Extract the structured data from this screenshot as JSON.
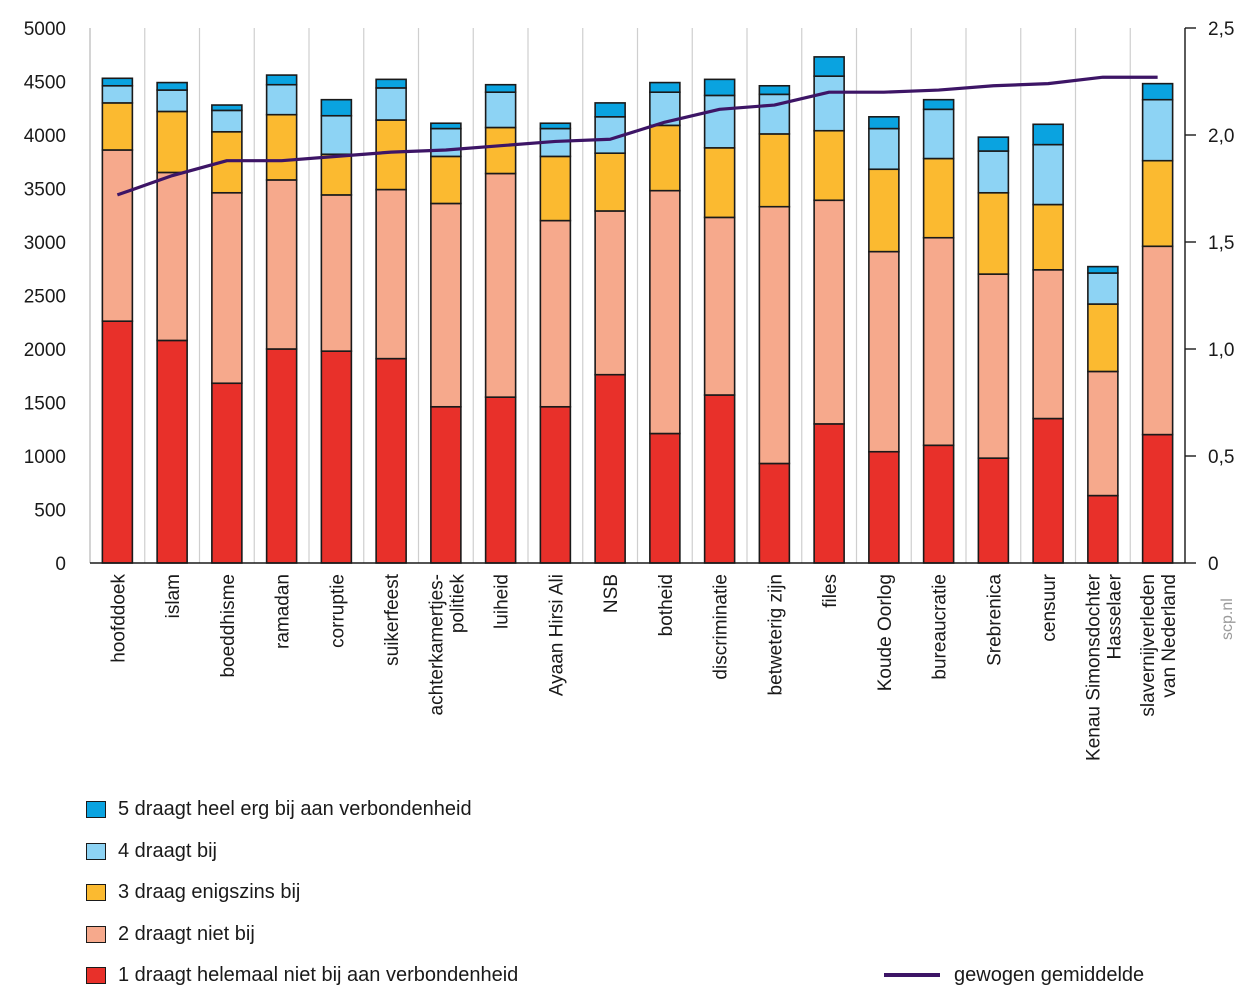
{
  "chart_data": {
    "type": "bar",
    "stacked": true,
    "categories": [
      [
        "hoofddoek"
      ],
      [
        "islam"
      ],
      [
        "boeddhisme"
      ],
      [
        "ramadan"
      ],
      [
        "corruptie"
      ],
      [
        "suikerfeest"
      ],
      [
        "achterkamertjes-",
        "politiek"
      ],
      [
        "luiheid"
      ],
      [
        "Ayaan Hirsi Ali"
      ],
      [
        "NSB"
      ],
      [
        "botheid"
      ],
      [
        "discriminatie"
      ],
      [
        "betweterig zijn"
      ],
      [
        "files"
      ],
      [
        "Koude Oorlog"
      ],
      [
        "bureaucratie"
      ],
      [
        "Srebrenica"
      ],
      [
        "censuur"
      ],
      [
        "Kenau Simonsdochter",
        "Hasselaer"
      ],
      [
        "slavernijverleden",
        "van Nederland"
      ]
    ],
    "series": [
      {
        "name": "1 draagt helemaal niet bij aan verbondenheid",
        "color": "#e8302a",
        "values": [
          2260,
          2080,
          1680,
          2000,
          1980,
          1910,
          1460,
          1550,
          1460,
          1760,
          1210,
          1570,
          930,
          1300,
          1040,
          1100,
          980,
          1350,
          630,
          1200
        ]
      },
      {
        "name": "2 draagt niet bij",
        "color": "#f6a98c",
        "values": [
          1600,
          1570,
          1780,
          1580,
          1460,
          1580,
          1900,
          2090,
          1740,
          1530,
          2270,
          1660,
          2400,
          2090,
          1870,
          1940,
          1720,
          1390,
          1160,
          1760
        ]
      },
      {
        "name": "3 draag enigszins bij",
        "color": "#fbba30",
        "values": [
          440,
          570,
          570,
          610,
          380,
          650,
          440,
          430,
          600,
          540,
          610,
          650,
          680,
          650,
          770,
          740,
          760,
          610,
          630,
          800
        ]
      },
      {
        "name": "4 draagt bij",
        "color": "#8dd3f4",
        "values": [
          160,
          200,
          200,
          280,
          360,
          300,
          260,
          330,
          260,
          340,
          310,
          490,
          370,
          510,
          380,
          460,
          390,
          560,
          290,
          570
        ]
      },
      {
        "name": "5 draagt heel erg bij aan verbondenheid",
        "color": "#0aa3e0",
        "values": [
          70,
          70,
          50,
          90,
          150,
          80,
          50,
          70,
          50,
          130,
          90,
          150,
          80,
          180,
          110,
          90,
          130,
          190,
          60,
          150
        ]
      }
    ],
    "line_series": {
      "name": "gewogen gemiddelde",
      "color": "#3d1566",
      "axis": "right",
      "values": [
        1.72,
        1.81,
        1.88,
        1.88,
        1.9,
        1.92,
        1.93,
        1.95,
        1.97,
        1.98,
        2.06,
        2.12,
        2.14,
        2.2,
        2.2,
        2.21,
        2.23,
        2.24,
        2.27,
        2.27
      ]
    },
    "y_left": {
      "min": 0,
      "max": 5000,
      "ticks": [
        "0",
        "500",
        "1000",
        "1500",
        "2000",
        "2500",
        "3000",
        "3500",
        "4000",
        "4500",
        "5000"
      ]
    },
    "y_right": {
      "min": 0,
      "max": 2.5,
      "ticks": [
        "0",
        "0,5",
        "1,0",
        "1,5",
        "2,0",
        "2,5"
      ]
    },
    "grid": "vertical separators between categories",
    "legend_placement": "bottom",
    "credit": "scp.nl"
  },
  "legend": {
    "items": [
      {
        "label": "5 draagt heel erg bij aan verbondenheid",
        "color": "#0aa3e0"
      },
      {
        "label": "4 draagt bij",
        "color": "#8dd3f4"
      },
      {
        "label": "3 draag enigszins bij",
        "color": "#fbba30"
      },
      {
        "label": "2 draagt niet bij",
        "color": "#f6a98c"
      },
      {
        "label": "1 draagt helemaal niet bij aan verbondenheid",
        "color": "#e8302a"
      }
    ],
    "line_label": "gewogen gemiddelde",
    "line_color": "#3d1566"
  }
}
